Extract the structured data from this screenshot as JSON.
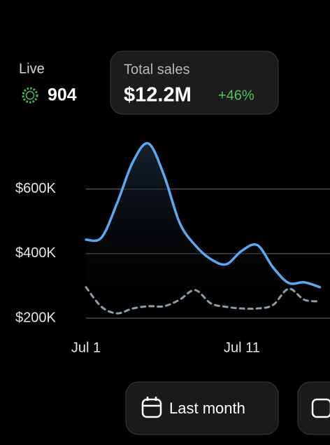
{
  "live": {
    "label": "Live",
    "value": 904
  },
  "total_sales": {
    "label": "Total sales",
    "value": "$12.2M",
    "change": "+46%"
  },
  "chart_data": {
    "type": "line",
    "x": [
      1,
      2,
      3,
      4,
      5,
      6,
      7,
      8,
      9,
      10,
      11,
      12,
      13,
      14,
      15,
      16
    ],
    "xlim": [
      1,
      16.65
    ],
    "xticks": [
      {
        "value": 1,
        "label": "Jul 1"
      },
      {
        "value": 11,
        "label": "Jul 11"
      }
    ],
    "ylim": [
      200000,
      760000
    ],
    "yticks": [
      {
        "value": 200000,
        "label": "$200K"
      },
      {
        "value": 400000,
        "label": "$400K"
      },
      {
        "value": 600000,
        "label": "$600K"
      }
    ],
    "grid": true,
    "series": [
      {
        "color": "#5aa8ee",
        "style": "solid",
        "values": [
          443000,
          450000,
          557000,
          683000,
          741000,
          643000,
          496000,
          426000,
          383000,
          367000,
          409000,
          426000,
          357000,
          309000,
          311000,
          296000
        ]
      },
      {
        "color": "#8d9cab",
        "style": "dashed",
        "values": [
          296000,
          235000,
          215000,
          230000,
          237000,
          237000,
          257000,
          287000,
          246000,
          235000,
          230000,
          230000,
          241000,
          291000,
          257000,
          252000
        ]
      }
    ]
  },
  "buttons": [
    {
      "label": "Last month"
    }
  ]
}
